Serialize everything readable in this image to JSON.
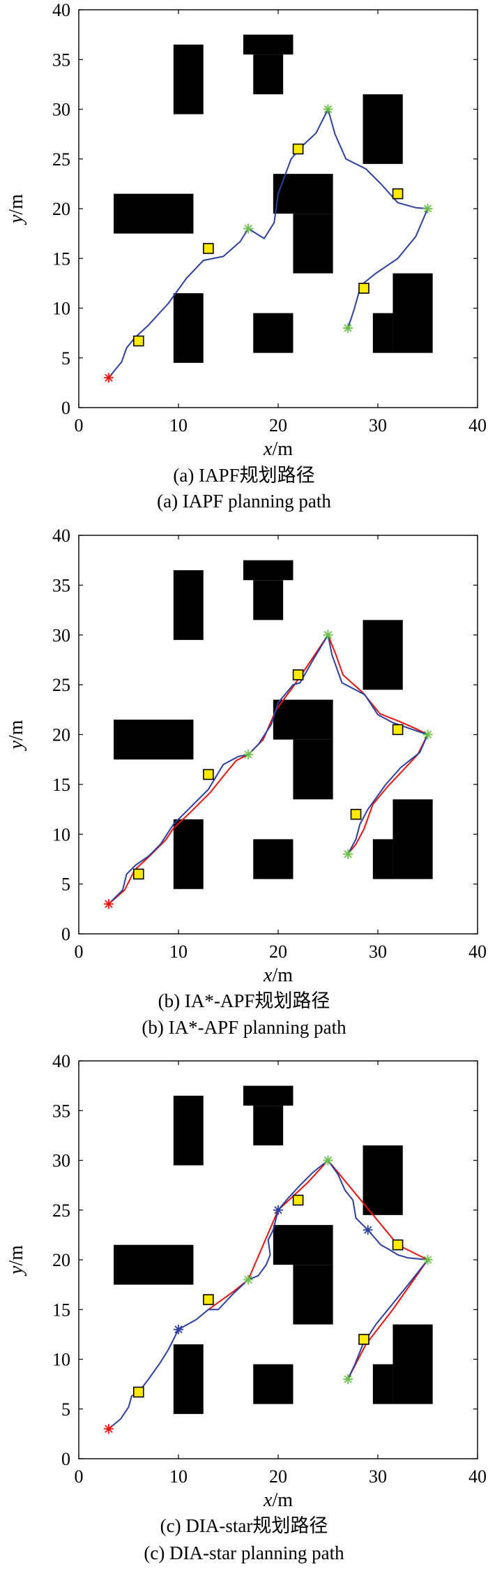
{
  "colors": {
    "obstacle": "#000000",
    "path": "#2b3f9e",
    "red_segment": "#e8120c",
    "start": "#e8120c",
    "waypoint": "#6cc04a",
    "extra_node": "#2b3f9e",
    "target_fill": "#ffea00",
    "target_stroke": "#000000"
  },
  "chart_data": [
    {
      "type": "line",
      "xlabel": {
        "var": "x",
        "unit": "/m"
      },
      "ylabel": {
        "var": "y",
        "unit": "/m"
      },
      "xlim": [
        0,
        40
      ],
      "ylim": [
        0,
        40
      ],
      "xticks": [
        "0",
        "10",
        "20",
        "30",
        "40"
      ],
      "yticks": [
        "0",
        "5",
        "10",
        "15",
        "20",
        "25",
        "30",
        "35",
        "40"
      ],
      "caption_cn": "(a) IAPF规划路径",
      "caption_en": "(a) IAPF planning path",
      "obstacles": [
        [
          9.5,
          29.5,
          12.5,
          36.5
        ],
        [
          16.5,
          35.5,
          21.5,
          37.5
        ],
        [
          17.5,
          31.5,
          20.5,
          35.5
        ],
        [
          28.5,
          24.5,
          32.5,
          31.5
        ],
        [
          3.5,
          17.5,
          11.5,
          21.5
        ],
        [
          19.5,
          19.5,
          25.5,
          23.5
        ],
        [
          21.5,
          13.5,
          25.5,
          19.5
        ],
        [
          9.5,
          4.5,
          12.5,
          11.5
        ],
        [
          17.5,
          5.5,
          21.5,
          9.5
        ],
        [
          31.5,
          5.5,
          35.5,
          13.5
        ],
        [
          29.5,
          5.5,
          31.5,
          9.5
        ]
      ],
      "start": [
        3,
        3
      ],
      "waypoints": [
        [
          17,
          18
        ],
        [
          25,
          30
        ],
        [
          35,
          20
        ],
        [
          27,
          8
        ]
      ],
      "extra_nodes": [],
      "targets": [
        [
          6,
          6.7
        ],
        [
          13,
          16
        ],
        [
          22,
          26
        ],
        [
          32,
          21.5
        ],
        [
          28.6,
          12
        ]
      ],
      "path": [
        [
          3,
          3
        ],
        [
          4.3,
          4.6
        ],
        [
          4.8,
          6
        ],
        [
          5.6,
          7
        ],
        [
          7,
          8.3
        ],
        [
          9,
          10.5
        ],
        [
          10.8,
          13
        ],
        [
          12.5,
          14.8
        ],
        [
          14.5,
          15.2
        ],
        [
          16.2,
          16.7
        ],
        [
          17,
          18
        ],
        [
          18.6,
          17
        ],
        [
          19.6,
          18.6
        ],
        [
          20,
          21.5
        ],
        [
          21.3,
          25
        ],
        [
          22.3,
          26.2
        ],
        [
          23.8,
          27.6
        ],
        [
          25,
          30
        ],
        [
          25.7,
          27.5
        ],
        [
          26.8,
          25
        ],
        [
          28.8,
          24
        ],
        [
          30.3,
          22.5
        ],
        [
          32,
          20.6
        ],
        [
          33.8,
          20.1
        ],
        [
          35,
          20
        ],
        [
          33.8,
          17.2
        ],
        [
          32,
          15
        ],
        [
          29.8,
          13.5
        ],
        [
          28.3,
          12.3
        ],
        [
          27.6,
          9.8
        ],
        [
          27,
          8
        ]
      ],
      "red_path": []
    },
    {
      "type": "line",
      "xlabel": {
        "var": "x",
        "unit": "/m"
      },
      "ylabel": {
        "var": "y",
        "unit": "/m"
      },
      "xlim": [
        0,
        40
      ],
      "ylim": [
        0,
        40
      ],
      "xticks": [
        "0",
        "10",
        "20",
        "30",
        "40"
      ],
      "yticks": [
        "0",
        "5",
        "10",
        "15",
        "20",
        "25",
        "30",
        "35",
        "40"
      ],
      "caption_cn": "(b) IA*-APF规划路径",
      "caption_en": "(b) IA*-APF planning path",
      "obstacles": [
        [
          9.5,
          29.5,
          12.5,
          36.5
        ],
        [
          16.5,
          35.5,
          21.5,
          37.5
        ],
        [
          17.5,
          31.5,
          20.5,
          35.5
        ],
        [
          28.5,
          24.5,
          32.5,
          31.5
        ],
        [
          3.5,
          17.5,
          11.5,
          21.5
        ],
        [
          19.5,
          19.5,
          25.5,
          23.5
        ],
        [
          21.5,
          13.5,
          25.5,
          19.5
        ],
        [
          9.5,
          4.5,
          12.5,
          11.5
        ],
        [
          17.5,
          5.5,
          21.5,
          9.5
        ],
        [
          31.5,
          5.5,
          35.5,
          13.5
        ],
        [
          29.5,
          5.5,
          31.5,
          9.5
        ]
      ],
      "start": [
        3,
        3
      ],
      "waypoints": [
        [
          17,
          18
        ],
        [
          25,
          30
        ],
        [
          35,
          20
        ],
        [
          27,
          8
        ]
      ],
      "extra_nodes": [],
      "targets": [
        [
          6,
          6
        ],
        [
          13,
          16
        ],
        [
          22,
          26
        ],
        [
          32,
          20.5
        ],
        [
          27.8,
          12
        ]
      ],
      "path": [
        [
          3,
          3
        ],
        [
          4.4,
          4.4
        ],
        [
          4.8,
          6
        ],
        [
          5.7,
          6.9
        ],
        [
          7,
          7.8
        ],
        [
          8.2,
          9
        ],
        [
          9.5,
          11
        ],
        [
          11,
          12.5
        ],
        [
          13,
          14.5
        ],
        [
          14.5,
          17
        ],
        [
          16,
          17.8
        ],
        [
          17,
          18
        ],
        [
          18,
          19
        ],
        [
          19.3,
          21
        ],
        [
          20,
          23.2
        ],
        [
          21.5,
          25
        ],
        [
          22.2,
          25.2
        ],
        [
          23.5,
          27.5
        ],
        [
          25,
          30
        ],
        [
          25.4,
          28
        ],
        [
          26.4,
          25.2
        ],
        [
          28.7,
          24
        ],
        [
          30,
          22
        ],
        [
          31.5,
          21.2
        ],
        [
          33.5,
          20.5
        ],
        [
          35,
          20
        ],
        [
          34.2,
          18.2
        ],
        [
          32.3,
          16.7
        ],
        [
          30.8,
          15
        ],
        [
          29,
          12.5
        ],
        [
          28.2,
          11
        ],
        [
          27.8,
          9.5
        ],
        [
          27,
          8
        ]
      ],
      "red_path": [
        [
          3,
          3
        ],
        [
          4.6,
          4.4
        ],
        [
          5.6,
          6.4
        ],
        [
          7.2,
          7.9
        ],
        [
          8.7,
          9.4
        ],
        [
          9.5,
          10.6
        ],
        [
          11.3,
          12.3
        ],
        [
          13.2,
          14.2
        ],
        [
          14.8,
          16.2
        ],
        [
          15.8,
          17.4
        ],
        [
          17,
          18
        ],
        [
          18.5,
          19.5
        ],
        [
          19.8,
          22.5
        ],
        [
          21.5,
          24.8
        ],
        [
          23.2,
          27.3
        ],
        [
          25,
          30
        ],
        [
          25.8,
          28
        ],
        [
          26.5,
          26
        ],
        [
          28.5,
          24.2
        ],
        [
          30.2,
          22.1
        ],
        [
          32.2,
          21.3
        ],
        [
          33.8,
          20.6
        ],
        [
          35,
          20
        ],
        [
          34,
          18
        ],
        [
          32.5,
          16.4
        ],
        [
          31,
          14.8
        ],
        [
          29.5,
          13
        ],
        [
          28.6,
          10.5
        ],
        [
          27.8,
          9
        ],
        [
          27,
          8
        ]
      ]
    },
    {
      "type": "line",
      "xlabel": {
        "var": "x",
        "unit": "/m"
      },
      "ylabel": {
        "var": "y",
        "unit": "/m"
      },
      "xlim": [
        0,
        40
      ],
      "ylim": [
        0,
        40
      ],
      "xticks": [
        "0",
        "10",
        "20",
        "30",
        "40"
      ],
      "yticks": [
        "0",
        "5",
        "10",
        "15",
        "20",
        "25",
        "30",
        "35",
        "40"
      ],
      "caption_cn": "(c) DIA-star规划路径",
      "caption_en": "(c) DIA-star planning path",
      "obstacles": [
        [
          9.5,
          29.5,
          12.5,
          36.5
        ],
        [
          16.5,
          35.5,
          21.5,
          37.5
        ],
        [
          17.5,
          31.5,
          20.5,
          35.5
        ],
        [
          28.5,
          24.5,
          32.5,
          31.5
        ],
        [
          3.5,
          17.5,
          11.5,
          21.5
        ],
        [
          19.5,
          19.5,
          25.5,
          23.5
        ],
        [
          21.5,
          13.5,
          25.5,
          19.5
        ],
        [
          9.5,
          4.5,
          12.5,
          11.5
        ],
        [
          17.5,
          5.5,
          21.5,
          9.5
        ],
        [
          31.5,
          5.5,
          35.5,
          13.5
        ],
        [
          29.5,
          5.5,
          31.5,
          9.5
        ]
      ],
      "start": [
        3,
        3
      ],
      "waypoints": [
        [
          17,
          18
        ],
        [
          25,
          30
        ],
        [
          35,
          20
        ],
        [
          27,
          8
        ]
      ],
      "extra_nodes": [
        [
          10,
          13
        ],
        [
          20,
          25
        ],
        [
          29,
          23
        ]
      ],
      "targets": [
        [
          6,
          6.7
        ],
        [
          13,
          16
        ],
        [
          22,
          26
        ],
        [
          32,
          21.5
        ],
        [
          28.6,
          12
        ]
      ],
      "path": [
        [
          3,
          3
        ],
        [
          4.2,
          4
        ],
        [
          5,
          5.2
        ],
        [
          5.3,
          6.3
        ],
        [
          6,
          6.7
        ],
        [
          7,
          8
        ],
        [
          8.2,
          9.7
        ],
        [
          9,
          11
        ],
        [
          10,
          13
        ],
        [
          11.8,
          14
        ],
        [
          13,
          15
        ],
        [
          14,
          15
        ],
        [
          15.5,
          16.6
        ],
        [
          17,
          18
        ],
        [
          18,
          18.4
        ],
        [
          18.8,
          19.5
        ],
        [
          19.2,
          20.5
        ],
        [
          19,
          22
        ],
        [
          19.5,
          23
        ],
        [
          20,
          25
        ],
        [
          21,
          26.2
        ],
        [
          22.2,
          27.5
        ],
        [
          23.5,
          28.8
        ],
        [
          25,
          30
        ],
        [
          26,
          28.6
        ],
        [
          26.7,
          27
        ],
        [
          27.5,
          26
        ],
        [
          27.8,
          24.2
        ],
        [
          29,
          23
        ],
        [
          30.3,
          21.5
        ],
        [
          31.2,
          21
        ],
        [
          32,
          20.5
        ],
        [
          33,
          20.2
        ],
        [
          35,
          20
        ],
        [
          33.2,
          17.7
        ],
        [
          31.5,
          15.6
        ],
        [
          29.8,
          13.5
        ],
        [
          28.5,
          11.5
        ],
        [
          27.7,
          9.5
        ],
        [
          27,
          8
        ]
      ],
      "red_path": [
        [
          13,
          15
        ],
        [
          15.5,
          16.8
        ],
        [
          17,
          18
        ],
        [
          20,
          25
        ],
        [
          23,
          27.8
        ],
        [
          25,
          30
        ],
        [
          32,
          21.5
        ],
        [
          35,
          20
        ],
        [
          31.5,
          15
        ],
        [
          28.8,
          11.5
        ],
        [
          27,
          8
        ]
      ]
    }
  ]
}
